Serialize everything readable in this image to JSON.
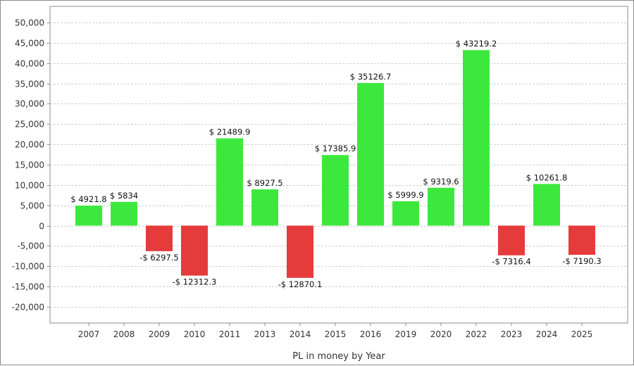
{
  "chart_data": {
    "type": "bar",
    "categories": [
      "2007",
      "2008",
      "2009",
      "2010",
      "2011",
      "2013",
      "2014",
      "2015",
      "2016",
      "2019",
      "2020",
      "2022",
      "2023",
      "2024",
      "2025"
    ],
    "values": [
      4921.8,
      5834,
      -6297.5,
      -12312.3,
      21489.9,
      8927.5,
      -12870.1,
      17385.9,
      35126.7,
      5999.9,
      9319.6,
      43219.2,
      -7316.4,
      10261.8,
      -7190.3
    ],
    "data_labels": [
      "$ 4921.8",
      "$ 5834",
      "-$ 6297.5",
      "-$ 12312.3",
      "$ 21489.9",
      "$ 8927.5",
      "-$ 12870.1",
      "$ 17385.9",
      "$ 35126.7",
      "$ 5999.9",
      "$ 9319.6",
      "$ 43219.2",
      "-$ 7316.4",
      "$ 10261.8",
      "-$ 7190.3"
    ],
    "y_ticks": [
      "50,000",
      "45,000",
      "40,000",
      "35,000",
      "30,000",
      "25,000",
      "20,000",
      "15,000",
      "10,000",
      "5,000",
      "0",
      "-5,000",
      "-10,000",
      "-15,000",
      "-20,000"
    ],
    "y_tick_values": [
      50000,
      45000,
      40000,
      35000,
      30000,
      25000,
      20000,
      15000,
      10000,
      5000,
      0,
      -5000,
      -10000,
      -15000,
      -20000
    ],
    "ylim": [
      -24000,
      54000
    ],
    "xlabel": "PL in money by Year",
    "ylabel": "",
    "grid": true,
    "colors": {
      "positive": "#3de83d",
      "negative": "#e53b3b",
      "grid": "#d0d0d0",
      "axis": "#8c8c8c"
    }
  }
}
